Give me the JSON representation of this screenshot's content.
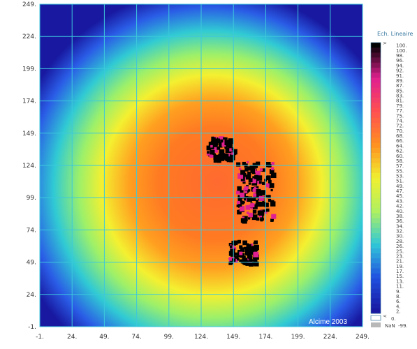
{
  "chart_data": {
    "type": "heatmap",
    "title": "",
    "credit": "Alcime 2003",
    "x_ticks": [
      "-1.",
      "24.",
      "49.",
      "74.",
      "99.",
      "124.",
      "149.",
      "174.",
      "199.",
      "224.",
      "249."
    ],
    "y_ticks": [
      "-1.",
      "24.",
      "49.",
      "74.",
      "99.",
      "124.",
      "149.",
      "174.",
      "199.",
      "224.",
      "249."
    ],
    "xlim": [
      -1,
      249
    ],
    "ylim": [
      -1,
      249
    ],
    "grid": true,
    "grid_color": "#3cc8dc",
    "colorbar": {
      "title": "Ech. Lineaire",
      "position": "right",
      "over_label": ">",
      "levels": [
        "100.",
        "100.",
        "98.",
        "96.",
        "94.",
        "92.",
        "91.",
        "89.",
        "87.",
        "85.",
        "83.",
        "81.",
        "79.",
        "77.",
        "75.",
        "74.",
        "72.",
        "70.",
        "68.",
        "66.",
        "64.",
        "62.",
        "60.",
        "58.",
        "57.",
        "55.",
        "53.",
        "51.",
        "49.",
        "47.",
        "45.",
        "43.",
        "42.",
        "40.",
        "38.",
        "36.",
        "34.",
        "32.",
        "30.",
        "28.",
        "26.",
        "25.",
        "23.",
        "21.",
        "19.",
        "17.",
        "15.",
        "13.",
        "11.",
        "9.",
        "8.",
        "6.",
        "4.",
        "2."
      ],
      "under_label": "<",
      "under_value": "0.",
      "nan_label": "NaN",
      "nan_value": "-99."
    },
    "colormap": [
      "#1818a0",
      "#2050e0",
      "#30c8d8",
      "#b0f060",
      "#f0f030",
      "#ff9020",
      "#ff5050",
      "#e02090",
      "#000000"
    ],
    "features": {
      "center": [
        140,
        115
      ],
      "core_value": 80,
      "edge_value": 10,
      "saturated_clusters": [
        [
          165,
          105
        ],
        [
          138,
          138
        ],
        [
          155,
          58
        ]
      ]
    }
  }
}
